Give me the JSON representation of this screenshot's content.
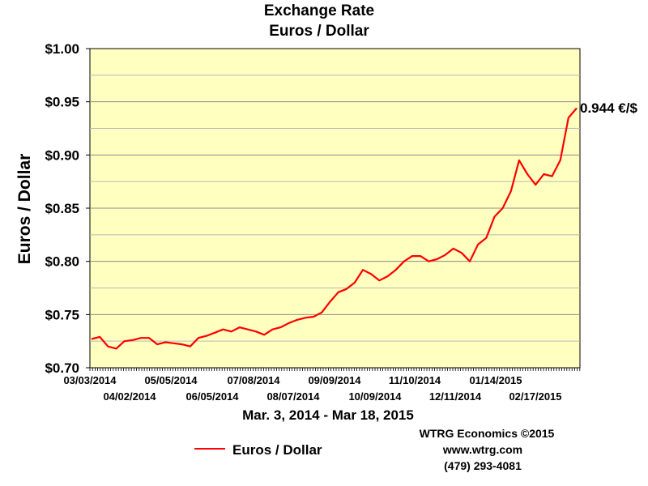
{
  "chart_data": {
    "type": "line",
    "title": "Exchange Rate",
    "subtitle": "Euros / Dollar",
    "ylabel": "Euros / Dollar",
    "xlabel": "Mar. 3, 2014 - Mar 18, 2015",
    "ylim": [
      0.7,
      1.0
    ],
    "yticks": [
      "$0.70",
      "$0.75",
      "$0.80",
      "$0.85",
      "$0.90",
      "$0.95",
      "$1.00"
    ],
    "xticks": [
      "03/03/2014",
      "04/02/2014",
      "05/05/2014",
      "06/05/2014",
      "07/08/2014",
      "08/07/2014",
      "09/09/2014",
      "10/09/2014",
      "11/10/2014",
      "12/11/2014",
      "01/14/2015",
      "02/17/2015"
    ],
    "grid": true,
    "legend_position": "bottom-left",
    "end_label": "0.944 €/$",
    "series": [
      {
        "name": "Euros / Dollar",
        "color": "#ff0000",
        "x": [
          "03/03/2014",
          "03/10/2014",
          "03/17/2014",
          "03/24/2014",
          "03/31/2014",
          "04/02/2014",
          "04/09/2014",
          "04/16/2014",
          "04/23/2014",
          "04/30/2014",
          "05/05/2014",
          "05/12/2014",
          "05/19/2014",
          "05/26/2014",
          "06/02/2014",
          "06/05/2014",
          "06/12/2014",
          "06/19/2014",
          "06/26/2014",
          "07/03/2014",
          "07/08/2014",
          "07/15/2014",
          "07/22/2014",
          "07/29/2014",
          "08/05/2014",
          "08/07/2014",
          "08/14/2014",
          "08/21/2014",
          "08/28/2014",
          "09/04/2014",
          "09/09/2014",
          "09/16/2014",
          "09/23/2014",
          "09/30/2014",
          "10/07/2014",
          "10/09/2014",
          "10/16/2014",
          "10/23/2014",
          "10/30/2014",
          "11/06/2014",
          "11/10/2014",
          "11/17/2014",
          "11/24/2014",
          "12/01/2014",
          "12/08/2014",
          "12/11/2014",
          "12/18/2014",
          "12/25/2014",
          "01/01/2015",
          "01/08/2015",
          "01/14/2015",
          "01/21/2015",
          "01/28/2015",
          "02/04/2015",
          "02/11/2015",
          "02/17/2015",
          "02/24/2015",
          "03/03/2015",
          "03/10/2015",
          "03/18/2015"
        ],
        "values": [
          0.727,
          0.729,
          0.72,
          0.718,
          0.725,
          0.726,
          0.728,
          0.728,
          0.722,
          0.724,
          0.723,
          0.722,
          0.72,
          0.728,
          0.73,
          0.733,
          0.736,
          0.734,
          0.738,
          0.736,
          0.734,
          0.731,
          0.736,
          0.738,
          0.742,
          0.745,
          0.747,
          0.748,
          0.752,
          0.762,
          0.771,
          0.774,
          0.78,
          0.792,
          0.788,
          0.782,
          0.786,
          0.792,
          0.8,
          0.805,
          0.805,
          0.8,
          0.802,
          0.806,
          0.812,
          0.808,
          0.8,
          0.816,
          0.822,
          0.842,
          0.85,
          0.866,
          0.895,
          0.882,
          0.872,
          0.882,
          0.88,
          0.895,
          0.935,
          0.944
        ]
      }
    ]
  },
  "credits": {
    "line1": "WTRG Economics  ©2015",
    "line2": "www.wtrg.com",
    "line3": "(479) 293-4081"
  }
}
